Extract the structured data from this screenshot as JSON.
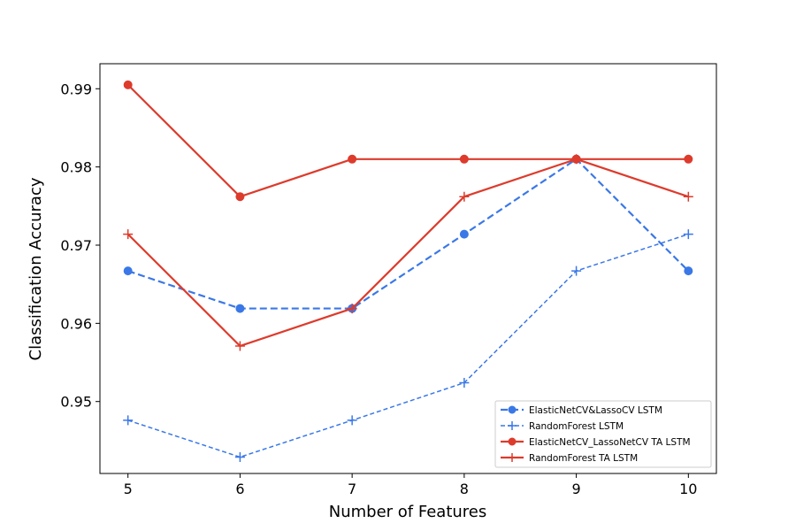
{
  "chart_data": {
    "type": "line",
    "title": "",
    "xlabel": "Number of Features",
    "ylabel": "Classification Accuracy",
    "x": [
      5,
      6,
      7,
      8,
      9,
      10
    ],
    "xticks": [
      "5",
      "6",
      "7",
      "8",
      "9",
      "10"
    ],
    "yticks": [
      "0.95",
      "0.96",
      "0.97",
      "0.98",
      "0.99"
    ],
    "xlim": [
      4.75,
      10.25
    ],
    "ylim": [
      0.9408,
      0.9932
    ],
    "grid": false,
    "legend_position": "bottom-right",
    "series": [
      {
        "name": "ElasticNetCV&LassoCV LSTM",
        "values": [
          0.9667,
          0.9619,
          0.9619,
          0.9714,
          0.981,
          0.9667
        ],
        "color": "#3b78e7",
        "line_style": "dashed-bold",
        "marker": "circle"
      },
      {
        "name": "RandomForest LSTM",
        "values": [
          0.9476,
          0.9429,
          0.9476,
          0.9524,
          0.9667,
          0.9714
        ],
        "color": "#3b78e7",
        "line_style": "dashed",
        "marker": "plus"
      },
      {
        "name": "ElasticNetCV_LassoNetCV TA LSTM",
        "values": [
          0.9905,
          0.9762,
          0.981,
          0.981,
          0.981,
          0.981
        ],
        "color": "#dd3b2c",
        "line_style": "solid",
        "marker": "circle"
      },
      {
        "name": "RandomForest TA LSTM",
        "values": [
          0.9714,
          0.9571,
          0.9619,
          0.9762,
          0.981,
          0.9762
        ],
        "color": "#dd3b2c",
        "line_style": "solid",
        "marker": "plus"
      }
    ]
  }
}
